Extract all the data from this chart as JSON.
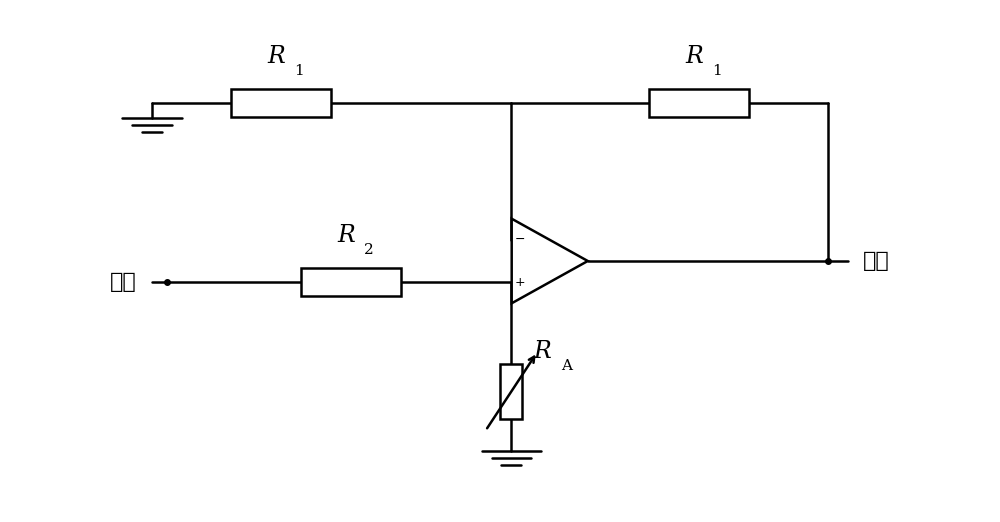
{
  "bg_color": "#ffffff",
  "line_color": "#000000",
  "line_width": 1.8,
  "fig_width": 10.0,
  "fig_height": 5.22,
  "r1_left_label": "R",
  "r1_left_sub": "1",
  "r1_right_label": "R",
  "r1_right_sub": "1",
  "r2_label": "R",
  "r2_sub": "2",
  "ra_label": "R",
  "ra_sub": "A",
  "input_label": "输入",
  "output_label": "输出"
}
